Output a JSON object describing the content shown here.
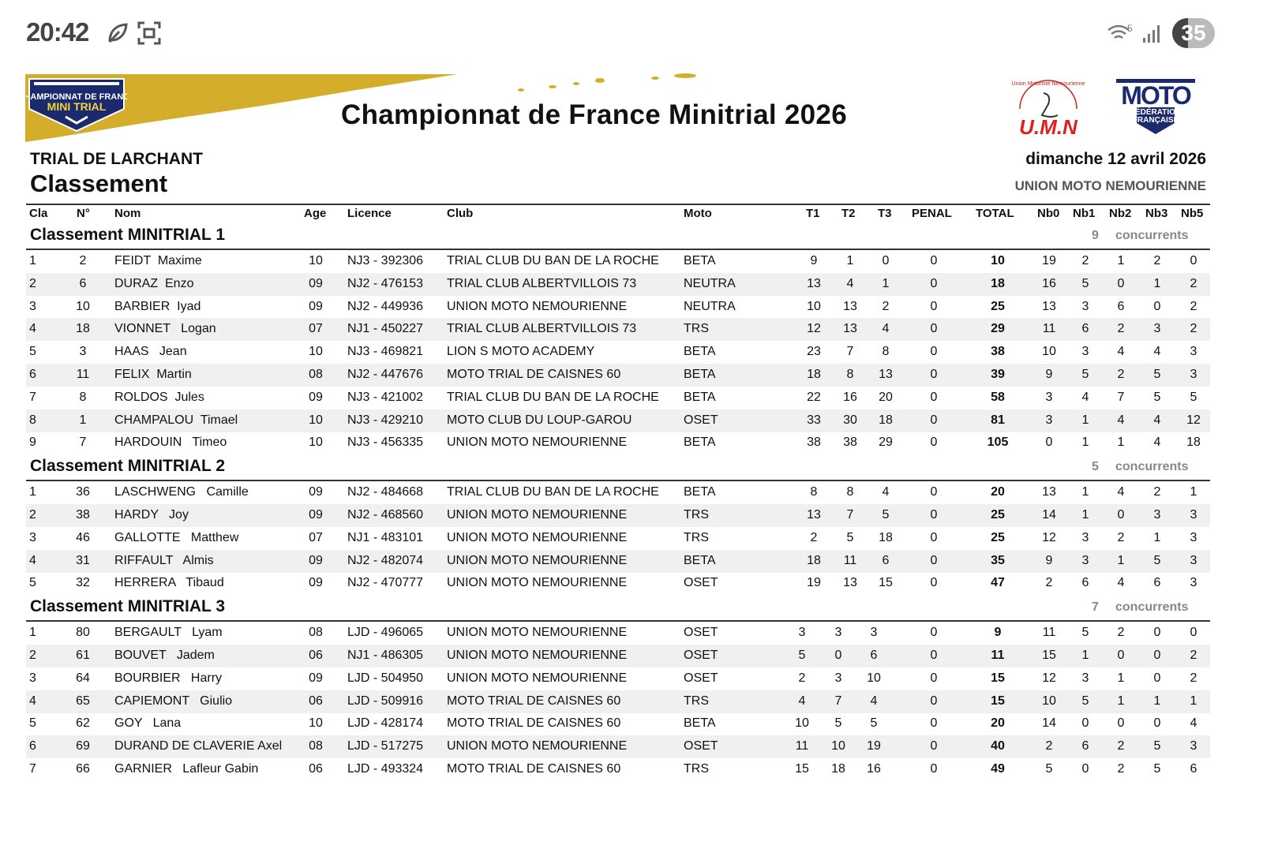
{
  "status_bar": {
    "time": "20:42",
    "battery": "35",
    "wifi_label": "5",
    "icons": [
      "leaf-icon",
      "screenshot-icon",
      "wifi-icon",
      "signal-icon",
      "battery-icon"
    ]
  },
  "header": {
    "logo_left_text": [
      "CHAMPIONNAT DE FRANCE",
      "MINI TRIAL"
    ],
    "title": "Championnat de France Minitrial 2026",
    "logo_umn": "U.M.N",
    "logo_umn_arc": "Union Motoriste Nemourienne",
    "logo_ffm": [
      "MOTO",
      "FÉDÉRATION",
      "FRANÇAISE"
    ],
    "event": "TRIAL DE LARCHANT",
    "subtitle": "Classement",
    "date": "dimanche 12 avril 2026",
    "organizer": "UNION MOTO NEMOURIENNE",
    "brand_color": "#d4ae2a",
    "navy": "#1a2a6c"
  },
  "columns": [
    "Cla",
    "N°",
    "Nom",
    "Age",
    "Licence",
    "Club",
    "Moto",
    "T1",
    "T2",
    "T3",
    "PENAL",
    "TOTAL",
    "Nb0",
    "Nb1",
    "Nb2",
    "Nb3",
    "Nb5"
  ],
  "sections": [
    {
      "title": "Classement MINITRIAL 1",
      "count": "9",
      "count_label": "concurrents",
      "rows": [
        [
          "1",
          "2",
          "FEIDT  Maxime",
          "10",
          "NJ3 - 392306",
          "TRIAL CLUB DU BAN DE LA ROCHE",
          "BETA",
          "9",
          "1",
          "0",
          "0",
          "10",
          "19",
          "2",
          "1",
          "2",
          "0"
        ],
        [
          "2",
          "6",
          "DURAZ  Enzo",
          "09",
          "NJ2 - 476153",
          "TRIAL CLUB ALBERTVILLOIS 73",
          "NEUTRA",
          "13",
          "4",
          "1",
          "0",
          "18",
          "16",
          "5",
          "0",
          "1",
          "2"
        ],
        [
          "3",
          "10",
          "BARBIER  Iyad",
          "09",
          "NJ2 - 449936",
          "UNION MOTO NEMOURIENNE",
          "NEUTRA",
          "10",
          "13",
          "2",
          "0",
          "25",
          "13",
          "3",
          "6",
          "0",
          "2"
        ],
        [
          "4",
          "18",
          "VIONNET   Logan",
          "07",
          "NJ1 - 450227",
          "TRIAL CLUB ALBERTVILLOIS 73",
          "TRS",
          "12",
          "13",
          "4",
          "0",
          "29",
          "11",
          "6",
          "2",
          "3",
          "2"
        ],
        [
          "5",
          "3",
          "HAAS   Jean",
          "10",
          "NJ3 - 469821",
          "LION S MOTO ACADEMY",
          "BETA",
          "23",
          "7",
          "8",
          "0",
          "38",
          "10",
          "3",
          "4",
          "4",
          "3"
        ],
        [
          "6",
          "11",
          "FELIX  Martin",
          "08",
          "NJ2 - 447676",
          "MOTO TRIAL DE CAISNES 60",
          "BETA",
          "18",
          "8",
          "13",
          "0",
          "39",
          "9",
          "5",
          "2",
          "5",
          "3"
        ],
        [
          "7",
          "8",
          "ROLDOS  Jules",
          "09",
          "NJ3 - 421002",
          "TRIAL CLUB DU BAN DE LA ROCHE",
          "BETA",
          "22",
          "16",
          "20",
          "0",
          "58",
          "3",
          "4",
          "7",
          "5",
          "5"
        ],
        [
          "8",
          "1",
          "CHAMPALOU  Timael",
          "10",
          "NJ3 - 429210",
          "MOTO CLUB DU LOUP-GAROU",
          "OSET",
          "33",
          "30",
          "18",
          "0",
          "81",
          "3",
          "1",
          "4",
          "4",
          "12"
        ],
        [
          "9",
          "7",
          "HARDOUIN   Timeo",
          "10",
          "NJ3 - 456335",
          "UNION MOTO NEMOURIENNE",
          "BETA",
          "38",
          "38",
          "29",
          "0",
          "105",
          "0",
          "1",
          "1",
          "4",
          "18"
        ]
      ]
    },
    {
      "title": "Classement MINITRIAL 2",
      "count": "5",
      "count_label": "concurrents",
      "rows": [
        [
          "1",
          "36",
          "LASCHWENG   Camille",
          "09",
          "NJ2 - 484668",
          "TRIAL CLUB DU BAN DE LA ROCHE",
          "BETA",
          "8",
          "8",
          "4",
          "0",
          "20",
          "13",
          "1",
          "4",
          "2",
          "1"
        ],
        [
          "2",
          "38",
          "HARDY   Joy",
          "09",
          "NJ2 - 468560",
          "UNION MOTO NEMOURIENNE",
          "TRS",
          "13",
          "7",
          "5",
          "0",
          "25",
          "14",
          "1",
          "0",
          "3",
          "3"
        ],
        [
          "3",
          "46",
          "GALLOTTE   Matthew",
          "07",
          "NJ1 - 483101",
          "UNION MOTO NEMOURIENNE",
          "TRS",
          "2",
          "5",
          "18",
          "0",
          "25",
          "12",
          "3",
          "2",
          "1",
          "3"
        ],
        [
          "4",
          "31",
          "RIFFAULT   Almis",
          "09",
          "NJ2 - 482074",
          "UNION MOTO NEMOURIENNE",
          "BETA",
          "18",
          "11",
          "6",
          "0",
          "35",
          "9",
          "3",
          "1",
          "5",
          "3"
        ],
        [
          "5",
          "32",
          "HERRERA   Tibaud",
          "09",
          "NJ2 - 470777",
          "UNION MOTO NEMOURIENNE",
          "OSET",
          "19",
          "13",
          "15",
          "0",
          "47",
          "2",
          "6",
          "4",
          "6",
          "3"
        ]
      ]
    },
    {
      "title": "Classement MINITRIAL 3",
      "count": "7",
      "count_label": "concurrents",
      "rows": [
        [
          "1",
          "80",
          "BERGAULT   Lyam",
          "08",
          "LJD - 496065",
          "UNION MOTO NEMOURIENNE",
          "OSET",
          "3",
          "3",
          "3",
          "0",
          "9",
          "11",
          "5",
          "2",
          "0",
          "0"
        ],
        [
          "2",
          "61",
          "BOUVET   Jadem",
          "06",
          "NJ1 - 486305",
          "UNION MOTO NEMOURIENNE",
          "OSET",
          "5",
          "0",
          "6",
          "0",
          "11",
          "15",
          "1",
          "0",
          "0",
          "2"
        ],
        [
          "3",
          "64",
          "BOURBIER   Harry",
          "09",
          "LJD - 504950",
          "UNION MOTO NEMOURIENNE",
          "OSET",
          "2",
          "3",
          "10",
          "0",
          "15",
          "12",
          "3",
          "1",
          "0",
          "2"
        ],
        [
          "4",
          "65",
          "CAPIEMONT   Giulio",
          "06",
          "LJD - 509916",
          "MOTO TRIAL DE CAISNES 60",
          "TRS",
          "4",
          "7",
          "4",
          "0",
          "15",
          "10",
          "5",
          "1",
          "1",
          "1"
        ],
        [
          "5",
          "62",
          "GOY   Lana",
          "10",
          "LJD - 428174",
          "MOTO TRIAL DE CAISNES 60",
          "BETA",
          "10",
          "5",
          "5",
          "0",
          "20",
          "14",
          "0",
          "0",
          "0",
          "4"
        ],
        [
          "6",
          "69",
          "DURAND DE CLAVERIE Axel",
          "08",
          "LJD - 517275",
          "UNION MOTO NEMOURIENNE",
          "OSET",
          "11",
          "10",
          "19",
          "0",
          "40",
          "2",
          "6",
          "2",
          "5",
          "3"
        ],
        [
          "7",
          "66",
          "GARNIER   Lafleur Gabin",
          "06",
          "LJD - 493324",
          "MOTO TRIAL DE CAISNES 60",
          "TRS",
          "15",
          "18",
          "16",
          "0",
          "49",
          "5",
          "0",
          "2",
          "5",
          "6"
        ]
      ]
    }
  ]
}
